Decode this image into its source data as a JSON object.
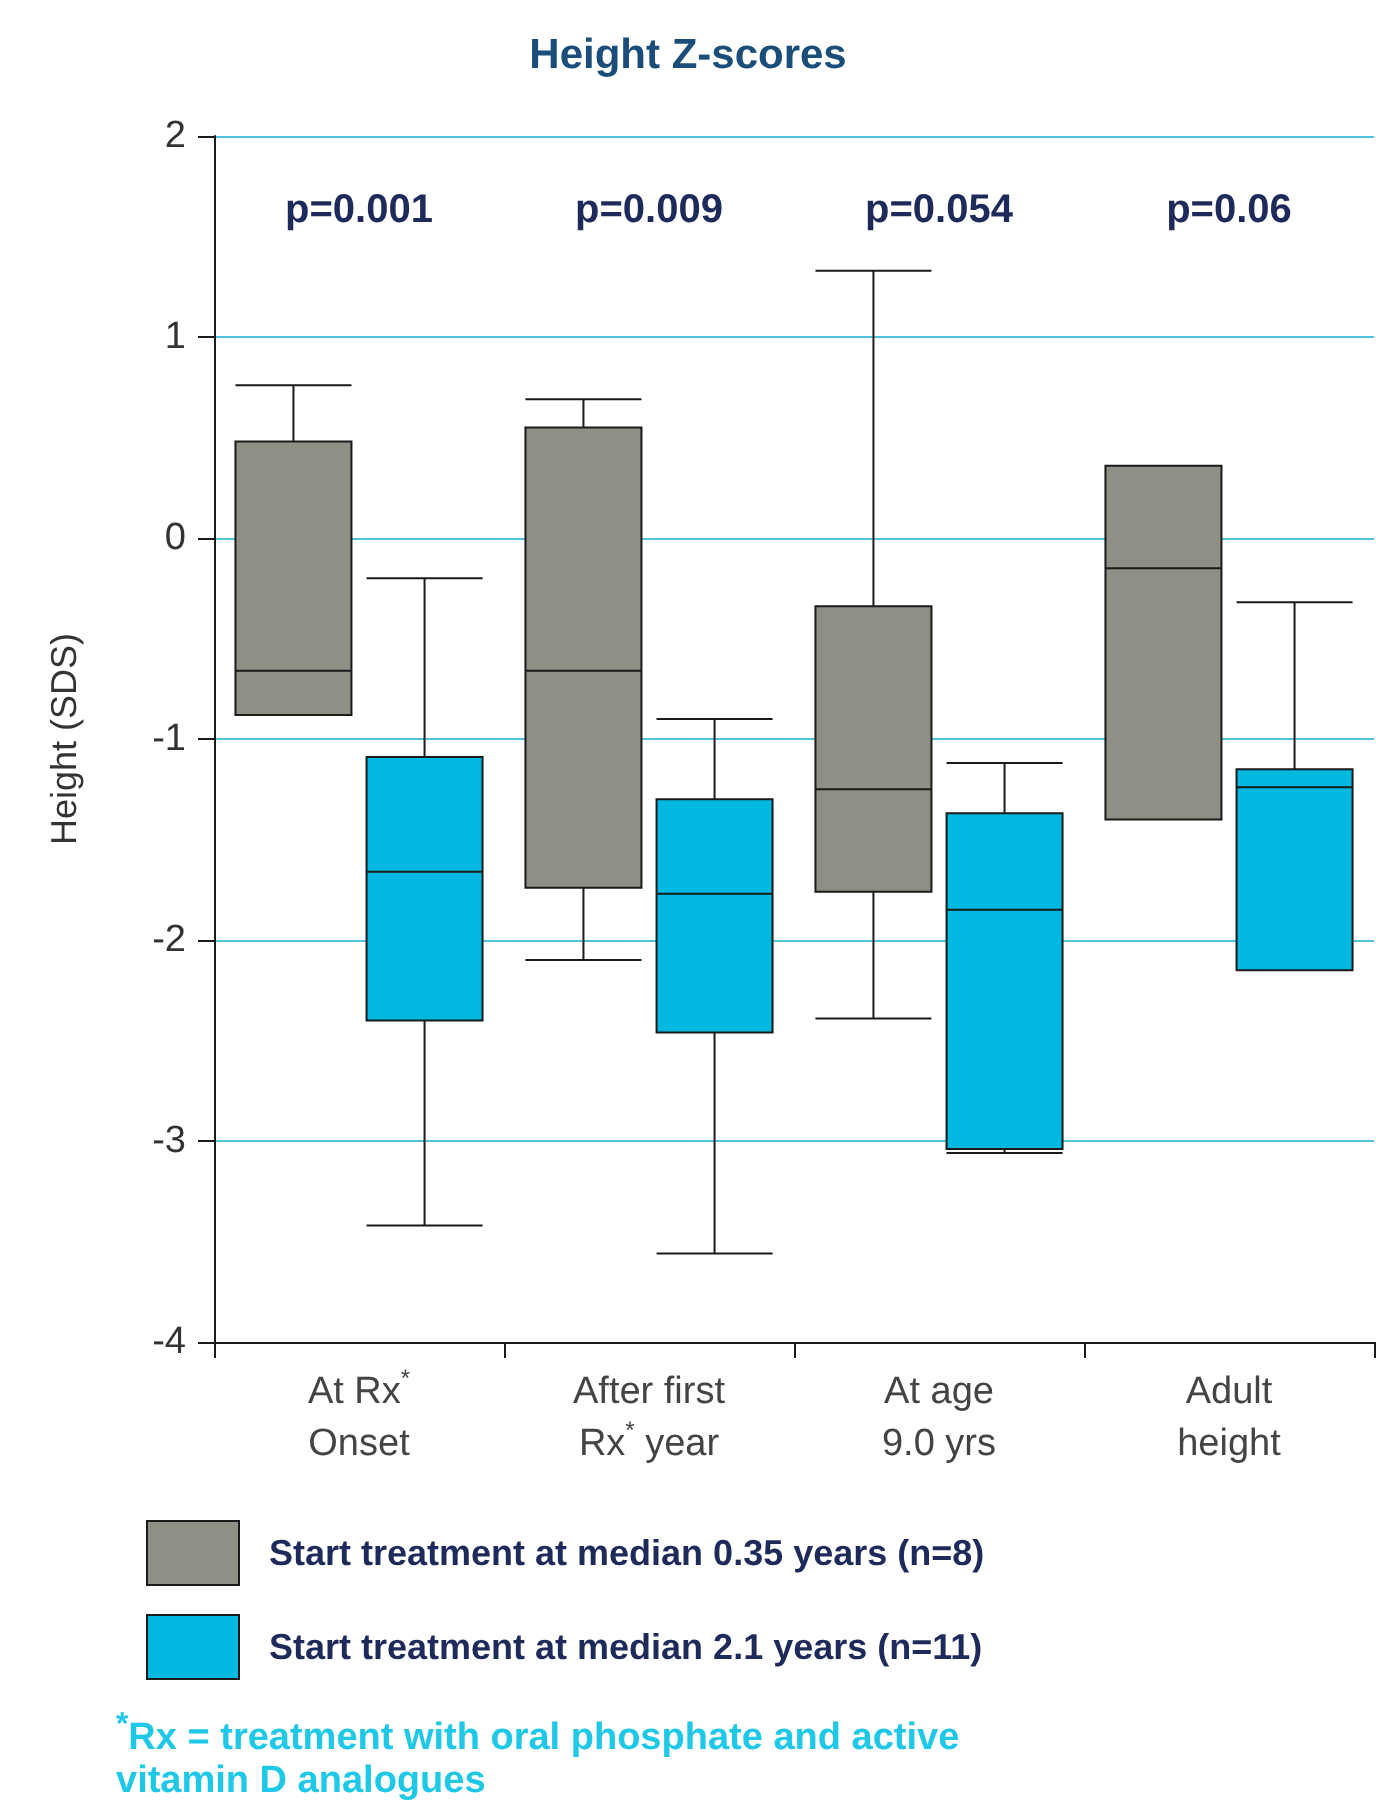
{
  "chart_data": {
    "type": "box",
    "title": "Height Z-scores",
    "ylabel": "Height (SDS)",
    "categories": [
      "At Rx$^{*}$\nOnset",
      "After first\nRx$^{*}$ year",
      "At age\n9.0 yrs",
      "Adult\nheight"
    ],
    "series": [
      {
        "name": "Start treatment at median 0.35 years (n=8)",
        "color": "#8f8f86",
        "boxes": [
          {
            "low": -0.88,
            "q1": -0.88,
            "median": -0.66,
            "q3": 0.48,
            "high": 0.76
          },
          {
            "low": -2.1,
            "q1": -1.74,
            "median": -0.66,
            "q3": 0.55,
            "high": 0.69
          },
          {
            "low": -2.39,
            "q1": -1.76,
            "median": -1.25,
            "q3": -0.34,
            "high": 1.33
          },
          {
            "low": -1.4,
            "q1": -1.4,
            "median": -0.15,
            "q3": 0.36,
            "high": 0.36
          }
        ]
      },
      {
        "name": "Start treatment at median 2.1 years (n=11)",
        "color": "#00b8e0",
        "boxes": [
          {
            "low": -3.42,
            "q1": -2.4,
            "median": -1.66,
            "q3": -1.09,
            "high": -0.2
          },
          {
            "low": -3.56,
            "q1": -2.46,
            "median": -1.77,
            "q3": -1.3,
            "high": -0.9
          },
          {
            "low": -3.06,
            "q1": -3.04,
            "median": -1.85,
            "q3": -1.37,
            "high": -1.12
          },
          {
            "low": -2.15,
            "q1": -2.15,
            "median": -1.24,
            "q3": -1.15,
            "high": -0.32
          }
        ]
      }
    ],
    "ylim": [
      -4,
      2
    ],
    "yticks": [
      -4,
      -3,
      -2,
      -1,
      0,
      1,
      2
    ],
    "grid": "y",
    "legend": "bottom",
    "annotations": [
      "p=0.001",
      "p=0.009",
      "p=0.054",
      "p=0.06",
      "$^{*}$Rx = treatment with oral phosphate and active vitamin D analogues"
    ]
  }
}
